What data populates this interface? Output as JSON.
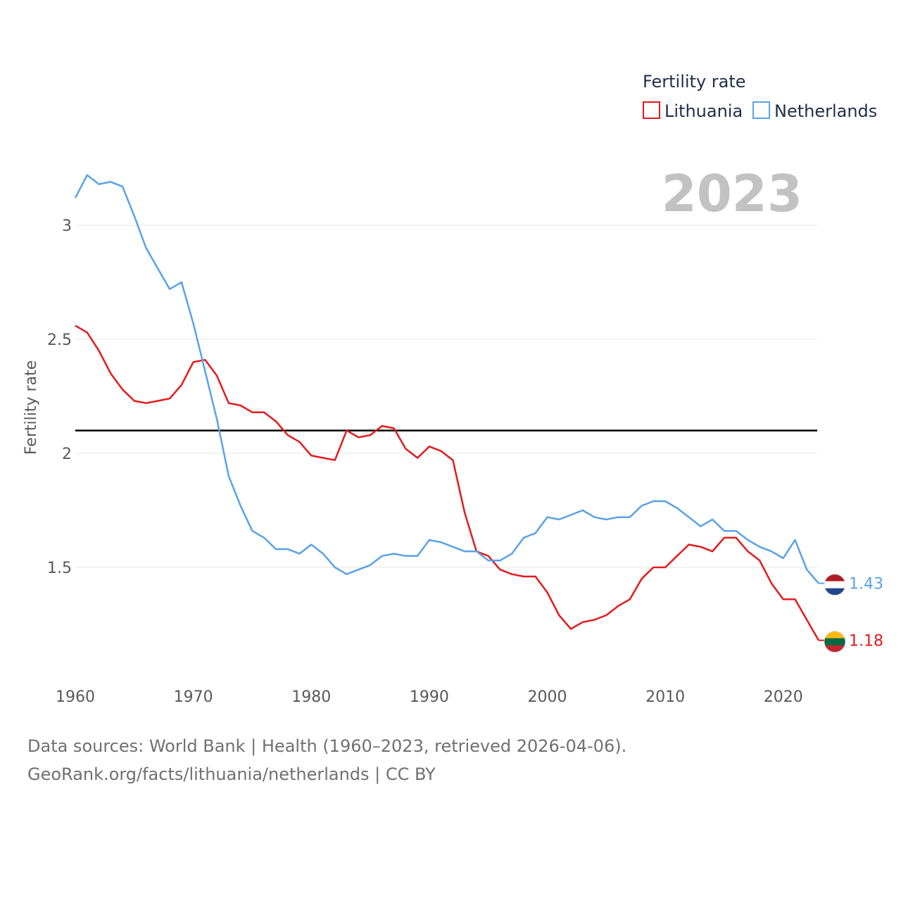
{
  "chart_data": {
    "type": "line",
    "title": "Fertility rate",
    "ylabel": "Fertility rate",
    "xlabel": "",
    "year_label": "2023",
    "xlim": [
      1960,
      2023
    ],
    "ylim": [
      1.0,
      3.3
    ],
    "x_ticks": [
      1960,
      1970,
      1980,
      1990,
      2000,
      2010,
      2020
    ],
    "y_ticks": [
      {
        "value": 1.5,
        "label": "1.5"
      },
      {
        "value": 2.0,
        "label": "2"
      },
      {
        "value": 2.5,
        "label": "2.5"
      },
      {
        "value": 3.0,
        "label": "3"
      }
    ],
    "reference_line": {
      "value": 2.1,
      "color": "#000000"
    },
    "x": [
      1960,
      1961,
      1962,
      1963,
      1964,
      1965,
      1966,
      1967,
      1968,
      1969,
      1970,
      1971,
      1972,
      1973,
      1974,
      1975,
      1976,
      1977,
      1978,
      1979,
      1980,
      1981,
      1982,
      1983,
      1984,
      1985,
      1986,
      1987,
      1988,
      1989,
      1990,
      1991,
      1992,
      1993,
      1994,
      1995,
      1996,
      1997,
      1998,
      1999,
      2000,
      2001,
      2002,
      2003,
      2004,
      2005,
      2006,
      2007,
      2008,
      2009,
      2010,
      2011,
      2012,
      2013,
      2014,
      2015,
      2016,
      2017,
      2018,
      2019,
      2020,
      2021,
      2022,
      2023
    ],
    "series": [
      {
        "name": "Lithuania",
        "color": "#e31a1c",
        "end_label": "1.18",
        "flag_colors": [
          "#fdb913",
          "#006a44",
          "#c1272d"
        ],
        "values": [
          2.56,
          2.53,
          2.45,
          2.35,
          2.28,
          2.23,
          2.22,
          2.23,
          2.24,
          2.3,
          2.4,
          2.41,
          2.34,
          2.22,
          2.21,
          2.18,
          2.18,
          2.14,
          2.08,
          2.05,
          1.99,
          1.98,
          1.97,
          2.1,
          2.07,
          2.08,
          2.12,
          2.11,
          2.02,
          1.98,
          2.03,
          2.01,
          1.97,
          1.74,
          1.57,
          1.55,
          1.49,
          1.47,
          1.46,
          1.46,
          1.39,
          1.29,
          1.23,
          1.26,
          1.27,
          1.29,
          1.33,
          1.36,
          1.45,
          1.5,
          1.5,
          1.55,
          1.6,
          1.59,
          1.57,
          1.63,
          1.63,
          1.57,
          1.53,
          1.43,
          1.36,
          1.36,
          1.27,
          1.18
        ]
      },
      {
        "name": "Netherlands",
        "color": "#5aa2e6",
        "end_label": "1.43",
        "flag_colors": [
          "#ae1c28",
          "#ffffff",
          "#21468b"
        ],
        "values": [
          3.12,
          3.22,
          3.18,
          3.19,
          3.17,
          3.04,
          2.9,
          2.81,
          2.72,
          2.75,
          2.57,
          2.36,
          2.15,
          1.9,
          1.77,
          1.66,
          1.63,
          1.58,
          1.58,
          1.56,
          1.6,
          1.56,
          1.5,
          1.47,
          1.49,
          1.51,
          1.55,
          1.56,
          1.55,
          1.55,
          1.62,
          1.61,
          1.59,
          1.57,
          1.57,
          1.53,
          1.53,
          1.56,
          1.63,
          1.65,
          1.72,
          1.71,
          1.73,
          1.75,
          1.72,
          1.71,
          1.72,
          1.72,
          1.77,
          1.79,
          1.79,
          1.76,
          1.72,
          1.68,
          1.71,
          1.66,
          1.66,
          1.62,
          1.59,
          1.57,
          1.54,
          1.62,
          1.49,
          1.43
        ]
      }
    ]
  },
  "footer": {
    "line1": "Data sources: World Bank | Health (1960–2023, retrieved 2026-04-06).",
    "line2": "GeoRank.org/facts/lithuania/netherlands | CC BY"
  }
}
